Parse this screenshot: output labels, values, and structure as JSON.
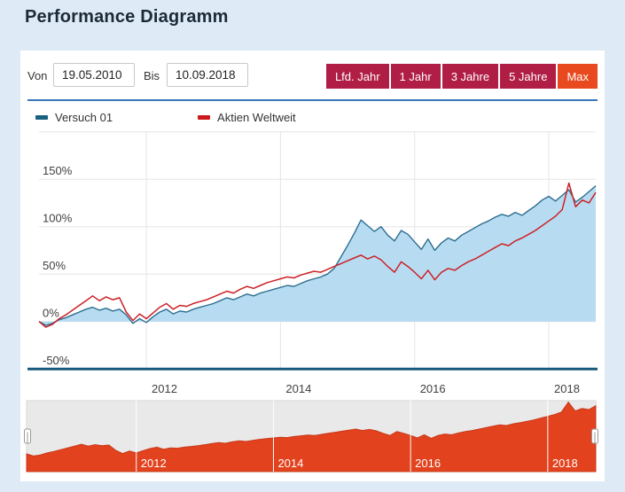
{
  "page": {
    "title": "Performance Diagramm"
  },
  "controls": {
    "from_label": "Von",
    "from_value": "19.05.2010",
    "to_label": "Bis",
    "to_value": "10.09.2018",
    "range_buttons": [
      {
        "label": "Lfd. Jahr",
        "active": false
      },
      {
        "label": "1 Jahr",
        "active": false
      },
      {
        "label": "3 Jahre",
        "active": false
      },
      {
        "label": "5 Jahre",
        "active": false
      },
      {
        "label": "Max",
        "active": true
      }
    ]
  },
  "legend": [
    {
      "label": "Versuch 01",
      "color": "#19617f"
    },
    {
      "label": "Aktien Weltweit",
      "color": "#cc1a1c"
    }
  ],
  "colors": {
    "page_background": "#deebf7",
    "card_background": "#ffffff",
    "button_red": "#b01e45",
    "button_active_orange": "#e8491f",
    "divider_blue": "#3879b5",
    "grid": "#e6e6e6",
    "axis_line": "#19597b",
    "tick_text": "#404040",
    "navigator_background": "#e9e9e9",
    "navigator_fill": "#e2421e"
  },
  "chart_data": {
    "type": "line",
    "title": "",
    "xlabel": "",
    "ylabel": "",
    "x_range": [
      2010.4,
      2018.7
    ],
    "x_start": 2010.4,
    "x_step": 0.1,
    "y_range": [
      -50,
      200
    ],
    "y_ticks": [
      -50,
      0,
      50,
      100,
      150
    ],
    "y_tick_labels": [
      "-50%",
      "0%",
      "50%",
      "100%",
      "150%"
    ],
    "y_grid_unlabeled": [
      200
    ],
    "x_ticks": [
      2012,
      2014,
      2016,
      2018
    ],
    "x_tick_labels": [
      "2012",
      "2014",
      "2016",
      "2018"
    ],
    "grid": true,
    "legend_position": "top",
    "series": [
      {
        "name": "Versuch 01",
        "type": "area",
        "color": "#2d6e90",
        "fill": "#b7dcf1",
        "values": [
          0,
          -4,
          -2,
          2,
          4,
          7,
          10,
          13,
          15,
          12,
          14,
          11,
          13,
          7,
          -2,
          3,
          -1,
          5,
          10,
          13,
          8,
          11,
          10,
          13,
          15,
          17,
          19,
          22,
          25,
          23,
          26,
          29,
          27,
          30,
          32,
          34,
          36,
          38,
          37,
          40,
          43,
          45,
          47,
          50,
          56,
          68,
          80,
          93,
          107,
          101,
          95,
          100,
          91,
          85,
          96,
          92,
          84,
          76,
          87,
          75,
          83,
          88,
          85,
          91,
          95,
          99,
          103,
          106,
          110,
          113,
          111,
          115,
          112,
          117,
          122,
          128,
          132,
          127,
          133,
          139,
          126,
          131,
          137,
          143
        ]
      },
      {
        "name": "Aktien Weltweit",
        "type": "line",
        "color": "#cc2127",
        "values": [
          0,
          -6,
          -3,
          3,
          7,
          12,
          17,
          22,
          27,
          22,
          26,
          23,
          25,
          10,
          1,
          8,
          3,
          9,
          15,
          19,
          13,
          17,
          16,
          19,
          21,
          23,
          26,
          29,
          32,
          30,
          34,
          37,
          35,
          38,
          41,
          43,
          45,
          47,
          46,
          49,
          51,
          53,
          52,
          55,
          58,
          61,
          64,
          67,
          70,
          66,
          69,
          65,
          58,
          52,
          63,
          58,
          52,
          45,
          54,
          44,
          52,
          56,
          54,
          59,
          63,
          66,
          70,
          74,
          78,
          82,
          80,
          85,
          88,
          92,
          96,
          101,
          106,
          111,
          118,
          146,
          121,
          128,
          125,
          136
        ]
      }
    ],
    "navigator": {
      "shows_series": "Aktien Weltweit",
      "fill": "#e2421e",
      "x_tick_labels": [
        "2012",
        "2014",
        "2016",
        "2018"
      ],
      "y_range": [
        -50,
        150
      ]
    }
  }
}
